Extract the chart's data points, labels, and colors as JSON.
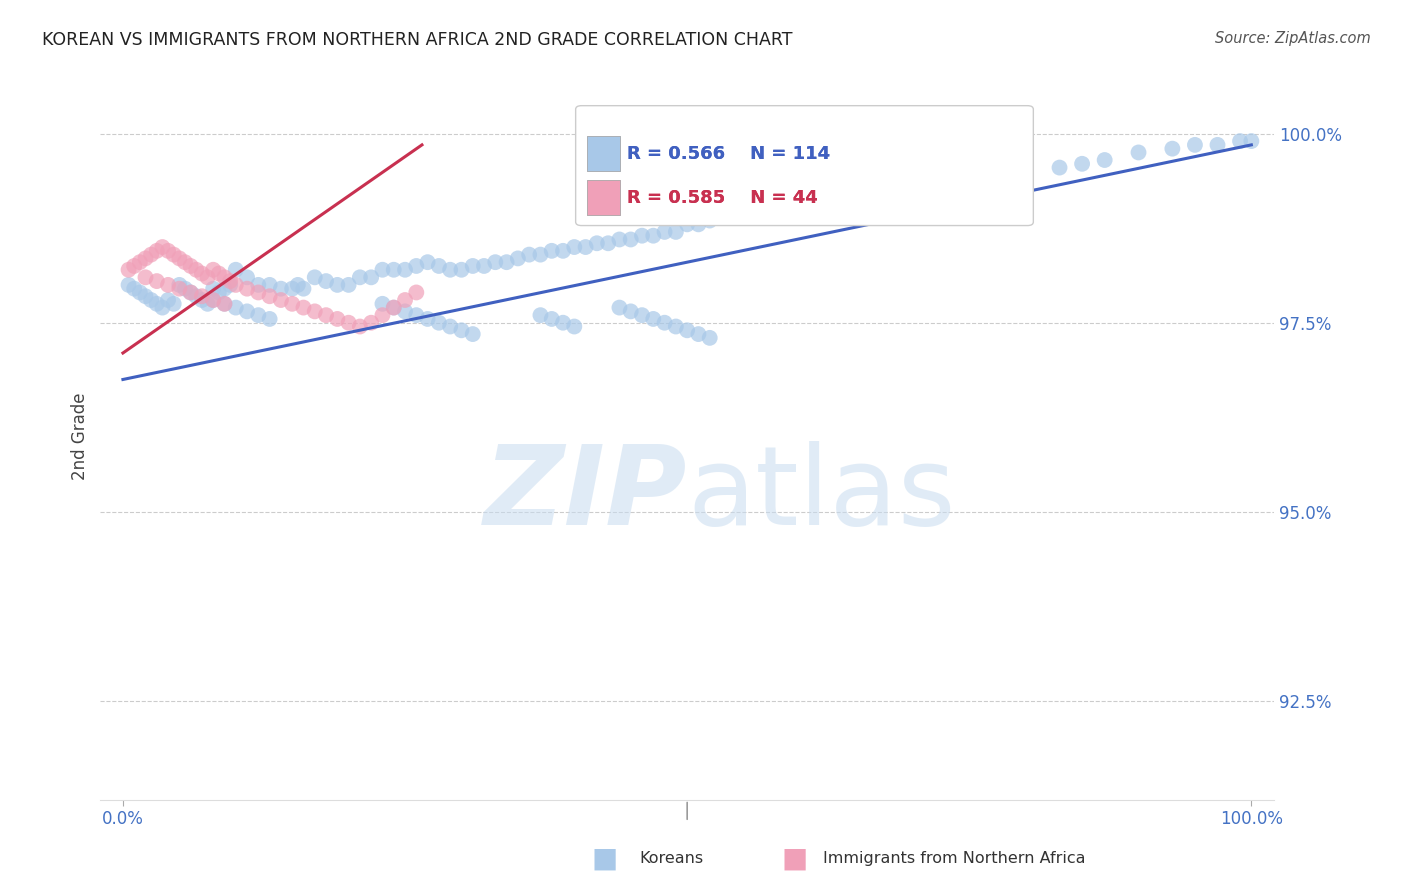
{
  "title": "KOREAN VS IMMIGRANTS FROM NORTHERN AFRICA 2ND GRADE CORRELATION CHART",
  "source": "Source: ZipAtlas.com",
  "ylabel": "2nd Grade",
  "ytick_labels": [
    "100.0%",
    "97.5%",
    "95.0%",
    "92.5%"
  ],
  "ytick_values": [
    1.0,
    0.975,
    0.95,
    0.925
  ],
  "xtick_labels": [
    "0.0%",
    "100.0%"
  ],
  "xtick_values": [
    0.0,
    1.0
  ],
  "xlim": [
    -0.02,
    1.02
  ],
  "ylim": [
    0.912,
    1.008
  ],
  "blue_color": "#A8C8E8",
  "pink_color": "#F0A0B8",
  "blue_line_color": "#4060C0",
  "pink_line_color": "#C83050",
  "legend_blue_R": "R = 0.566",
  "legend_blue_N": "N = 114",
  "legend_pink_R": "R = 0.585",
  "legend_pink_N": "N = 44",
  "title_color": "#222222",
  "source_color": "#555555",
  "axis_label_color": "#4472C4",
  "grid_color": "#CCCCCC",
  "watermark_color": "#C8DCF0",
  "blue_line_x0": 0.0,
  "blue_line_y0": 0.9675,
  "blue_line_x1": 1.0,
  "blue_line_y1": 0.9985,
  "pink_line_x0": 0.0,
  "pink_line_y0": 0.971,
  "pink_line_x1": 0.265,
  "pink_line_y1": 0.9985,
  "blue_scatter_x": [
    0.005,
    0.01,
    0.015,
    0.02,
    0.025,
    0.03,
    0.035,
    0.04,
    0.045,
    0.05,
    0.055,
    0.06,
    0.065,
    0.07,
    0.075,
    0.08,
    0.085,
    0.09,
    0.095,
    0.1,
    0.11,
    0.12,
    0.13,
    0.14,
    0.15,
    0.155,
    0.16,
    0.17,
    0.18,
    0.19,
    0.2,
    0.21,
    0.22,
    0.23,
    0.24,
    0.25,
    0.26,
    0.27,
    0.28,
    0.29,
    0.3,
    0.31,
    0.32,
    0.33,
    0.34,
    0.35,
    0.36,
    0.37,
    0.38,
    0.39,
    0.4,
    0.41,
    0.42,
    0.43,
    0.44,
    0.45,
    0.46,
    0.47,
    0.48,
    0.49,
    0.5,
    0.51,
    0.52,
    0.54,
    0.55,
    0.56,
    0.57,
    0.59,
    0.61,
    0.63,
    0.65,
    0.68,
    0.7,
    0.73,
    0.75,
    0.78,
    0.8,
    0.83,
    0.85,
    0.87,
    0.9,
    0.93,
    0.95,
    0.97,
    0.99,
    1.0,
    0.08,
    0.09,
    0.1,
    0.11,
    0.12,
    0.13,
    0.23,
    0.24,
    0.25,
    0.26,
    0.27,
    0.28,
    0.29,
    0.3,
    0.31,
    0.37,
    0.38,
    0.39,
    0.4,
    0.44,
    0.45,
    0.46,
    0.47,
    0.48,
    0.49,
    0.5,
    0.51,
    0.52
  ],
  "blue_scatter_y": [
    0.98,
    0.9795,
    0.979,
    0.9785,
    0.978,
    0.9775,
    0.977,
    0.978,
    0.9775,
    0.98,
    0.9795,
    0.979,
    0.9785,
    0.978,
    0.9775,
    0.9795,
    0.979,
    0.9795,
    0.98,
    0.982,
    0.981,
    0.98,
    0.98,
    0.9795,
    0.9795,
    0.98,
    0.9795,
    0.981,
    0.9805,
    0.98,
    0.98,
    0.981,
    0.981,
    0.982,
    0.982,
    0.982,
    0.9825,
    0.983,
    0.9825,
    0.982,
    0.982,
    0.9825,
    0.9825,
    0.983,
    0.983,
    0.9835,
    0.984,
    0.984,
    0.9845,
    0.9845,
    0.985,
    0.985,
    0.9855,
    0.9855,
    0.986,
    0.986,
    0.9865,
    0.9865,
    0.987,
    0.987,
    0.988,
    0.988,
    0.9885,
    0.989,
    0.989,
    0.9895,
    0.9895,
    0.99,
    0.9905,
    0.991,
    0.9915,
    0.992,
    0.9925,
    0.9935,
    0.994,
    0.9945,
    0.995,
    0.9955,
    0.996,
    0.9965,
    0.9975,
    0.998,
    0.9985,
    0.9985,
    0.999,
    0.999,
    0.978,
    0.9775,
    0.977,
    0.9765,
    0.976,
    0.9755,
    0.9775,
    0.977,
    0.9765,
    0.976,
    0.9755,
    0.975,
    0.9745,
    0.974,
    0.9735,
    0.976,
    0.9755,
    0.975,
    0.9745,
    0.977,
    0.9765,
    0.976,
    0.9755,
    0.975,
    0.9745,
    0.974,
    0.9735,
    0.973
  ],
  "pink_scatter_x": [
    0.005,
    0.01,
    0.015,
    0.02,
    0.025,
    0.03,
    0.035,
    0.04,
    0.045,
    0.05,
    0.055,
    0.06,
    0.065,
    0.07,
    0.075,
    0.08,
    0.085,
    0.09,
    0.095,
    0.1,
    0.11,
    0.12,
    0.13,
    0.14,
    0.15,
    0.16,
    0.17,
    0.18,
    0.19,
    0.2,
    0.21,
    0.22,
    0.23,
    0.24,
    0.25,
    0.26,
    0.02,
    0.03,
    0.04,
    0.05,
    0.06,
    0.07,
    0.08,
    0.09
  ],
  "pink_scatter_y": [
    0.982,
    0.9825,
    0.983,
    0.9835,
    0.984,
    0.9845,
    0.985,
    0.9845,
    0.984,
    0.9835,
    0.983,
    0.9825,
    0.982,
    0.9815,
    0.981,
    0.982,
    0.9815,
    0.981,
    0.9805,
    0.98,
    0.9795,
    0.979,
    0.9785,
    0.978,
    0.9775,
    0.977,
    0.9765,
    0.976,
    0.9755,
    0.975,
    0.9745,
    0.975,
    0.976,
    0.977,
    0.978,
    0.979,
    0.981,
    0.9805,
    0.98,
    0.9795,
    0.979,
    0.9785,
    0.978,
    0.9775
  ]
}
